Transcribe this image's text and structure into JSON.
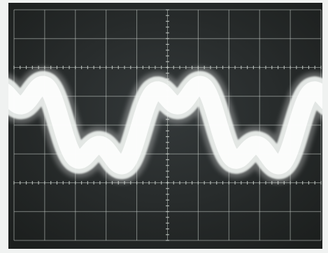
{
  "image": {
    "subject": "oscilloscope-screen",
    "colors": {
      "frame": "#f0f2f1",
      "screen": "#272b28",
      "graticule": "#c9d0cb",
      "trace": "#eef2ef",
      "trace_glow": "#ffffff"
    },
    "graticule": {
      "vertical_divisions": 10,
      "horizontal_divisions": 8,
      "minor_ticks_per_division": 5
    },
    "waveform": {
      "shape": "fundamental-plus-third-harmonic",
      "fundamental_periods_visible": 2,
      "harmonic_multiple": 3,
      "harmonic_relative_amplitude": 0.45,
      "trace_style": "thick-band"
    }
  }
}
